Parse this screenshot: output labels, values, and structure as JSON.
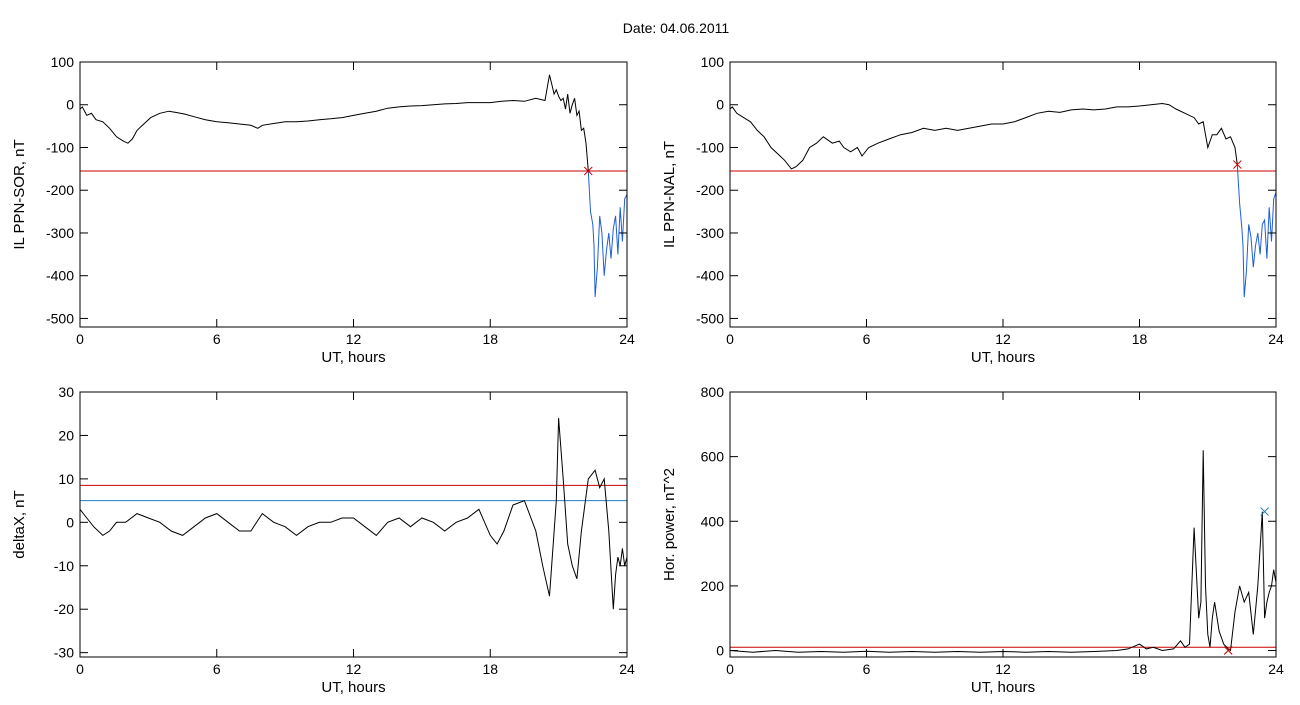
{
  "header": {
    "date_label": "Date:  04.06.2011"
  },
  "colors": {
    "frame": "#000000",
    "trace": "#000000",
    "red": "#cc0000",
    "blue": "#1f5fd6",
    "cyan_blue": "#1f7fc4",
    "green": "#22aa22"
  },
  "chart_data": [
    {
      "id": "il_ppn_sor",
      "type": "line",
      "ylabel": "IL PPN-SOR, nT",
      "xlabel": "UT, hours",
      "xlim": [
        0,
        24
      ],
      "ylim": [
        -520,
        100
      ],
      "xticks": [
        0,
        6,
        12,
        18,
        24
      ],
      "yticks": [
        100,
        0,
        -100,
        -200,
        -300,
        -400,
        -500
      ],
      "hlines": [
        {
          "y": -155,
          "color": "red"
        }
      ],
      "markers": [
        {
          "x": 22.3,
          "y": -155,
          "color": "red",
          "symbol": "x"
        }
      ],
      "series": [
        {
          "color": "black",
          "x": [
            0,
            0.1,
            0.3,
            0.5,
            0.7,
            1.0,
            1.3,
            1.6,
            1.9,
            2.1,
            2.3,
            2.5,
            2.8,
            3.1,
            3.5,
            3.9,
            4.2,
            4.6,
            5.0,
            5.5,
            6.0,
            6.5,
            7.0,
            7.5,
            7.8,
            8.0,
            8.5,
            9.0,
            9.5,
            10.0,
            10.5,
            11.0,
            11.5,
            12.0,
            12.5,
            13.0,
            13.5,
            14.0,
            14.5,
            15.0,
            15.5,
            16.0,
            16.5,
            17.0,
            17.5,
            18.0,
            18.5,
            19.0,
            19.5,
            20.0,
            20.4,
            20.6,
            20.8,
            20.9,
            21.0,
            21.1,
            21.2,
            21.3,
            21.4,
            21.5,
            21.6,
            21.7,
            21.8,
            21.9,
            22.0,
            22.1,
            22.2,
            22.3
          ],
          "y": [
            -10,
            -5,
            -25,
            -20,
            -35,
            -40,
            -55,
            -75,
            -85,
            -90,
            -80,
            -60,
            -45,
            -30,
            -20,
            -15,
            -18,
            -22,
            -28,
            -35,
            -40,
            -42,
            -45,
            -48,
            -55,
            -48,
            -44,
            -40,
            -40,
            -38,
            -35,
            -33,
            -30,
            -25,
            -20,
            -15,
            -8,
            -5,
            -3,
            -2,
            0,
            2,
            3,
            5,
            5,
            5,
            8,
            10,
            8,
            15,
            10,
            70,
            25,
            35,
            20,
            10,
            15,
            -10,
            25,
            -20,
            0,
            15,
            -25,
            -15,
            -60,
            -55,
            -90,
            -155
          ]
        },
        {
          "color": "blue",
          "x": [
            22.3,
            22.4,
            22.5,
            22.55,
            22.6,
            22.7,
            22.8,
            22.9,
            23.0,
            23.1,
            23.2,
            23.3,
            23.4,
            23.5,
            23.6,
            23.7,
            23.8,
            23.9,
            24.0
          ],
          "y": [
            -155,
            -250,
            -280,
            -330,
            -450,
            -380,
            -260,
            -300,
            -400,
            -340,
            -300,
            -360,
            -290,
            -260,
            -350,
            -240,
            -320,
            -220,
            -210
          ]
        }
      ]
    },
    {
      "id": "il_ppn_nal",
      "type": "line",
      "ylabel": "IL PPN-NAL, nT",
      "xlabel": "UT, hours",
      "xlim": [
        0,
        24
      ],
      "ylim": [
        -520,
        100
      ],
      "xticks": [
        0,
        6,
        12,
        18,
        24
      ],
      "yticks": [
        100,
        0,
        -100,
        -200,
        -300,
        -400,
        -500
      ],
      "hlines": [
        {
          "y": -155,
          "color": "red"
        }
      ],
      "markers": [
        {
          "x": 22.3,
          "y": -140,
          "color": "red",
          "symbol": "x"
        }
      ],
      "series": [
        {
          "color": "black",
          "x": [
            0,
            0.1,
            0.3,
            0.6,
            0.9,
            1.2,
            1.5,
            1.8,
            2.1,
            2.4,
            2.7,
            2.9,
            3.2,
            3.5,
            3.8,
            4.1,
            4.5,
            4.8,
            5.0,
            5.3,
            5.6,
            5.8,
            6.1,
            6.5,
            7.0,
            7.5,
            8.0,
            8.5,
            9.0,
            9.5,
            10.0,
            10.5,
            11.0,
            11.5,
            12.0,
            12.5,
            13.0,
            13.5,
            14.0,
            14.5,
            15.0,
            15.5,
            16.0,
            16.5,
            17.0,
            17.5,
            18.0,
            18.5,
            19.0,
            19.3,
            19.6,
            20.0,
            20.4,
            20.6,
            20.8,
            21.0,
            21.2,
            21.4,
            21.6,
            21.8,
            22.0,
            22.2,
            22.3
          ],
          "y": [
            -10,
            -5,
            -20,
            -30,
            -40,
            -60,
            -75,
            -100,
            -115,
            -130,
            -150,
            -145,
            -130,
            -100,
            -90,
            -75,
            -90,
            -85,
            -100,
            -110,
            -100,
            -120,
            -100,
            -90,
            -80,
            -70,
            -65,
            -55,
            -60,
            -55,
            -60,
            -55,
            -50,
            -45,
            -45,
            -40,
            -30,
            -20,
            -15,
            -18,
            -12,
            -10,
            -12,
            -10,
            -5,
            -5,
            -3,
            0,
            3,
            0,
            -10,
            -20,
            -30,
            -45,
            -40,
            -100,
            -70,
            -70,
            -55,
            -80,
            -75,
            -100,
            -140
          ]
        },
        {
          "color": "blue",
          "x": [
            22.3,
            22.4,
            22.5,
            22.55,
            22.6,
            22.7,
            22.8,
            22.9,
            23.0,
            23.1,
            23.2,
            23.3,
            23.4,
            23.5,
            23.6,
            23.7,
            23.8,
            23.9,
            24.0
          ],
          "y": [
            -140,
            -230,
            -290,
            -330,
            -450,
            -390,
            -280,
            -310,
            -380,
            -330,
            -300,
            -350,
            -280,
            -270,
            -360,
            -240,
            -320,
            -220,
            -205
          ]
        }
      ]
    },
    {
      "id": "delta_x",
      "type": "line",
      "ylabel": "deltaX, nT",
      "xlabel": "UT, hours",
      "xlim": [
        0,
        24
      ],
      "ylim": [
        -31,
        30
      ],
      "xticks": [
        0,
        6,
        12,
        18,
        24
      ],
      "yticks": [
        30,
        20,
        10,
        0,
        -10,
        -20,
        -30
      ],
      "hlines": [
        {
          "y": 8.5,
          "color": "red"
        },
        {
          "y": 5,
          "color": "cyan_blue"
        }
      ],
      "markers": [],
      "series": [
        {
          "color": "black",
          "x": [
            0,
            0.3,
            0.6,
            1.0,
            1.3,
            1.6,
            2.0,
            2.5,
            3.0,
            3.5,
            4.0,
            4.5,
            5.0,
            5.5,
            6.0,
            6.5,
            7.0,
            7.5,
            8.0,
            8.5,
            9.0,
            9.5,
            10.0,
            10.5,
            11.0,
            11.5,
            12.0,
            12.5,
            13.0,
            13.5,
            14.0,
            14.5,
            15.0,
            15.5,
            16.0,
            16.5,
            17.0,
            17.5,
            18.0,
            18.3,
            18.6,
            19.0,
            19.5,
            20.0,
            20.3,
            20.6,
            20.9,
            21.0,
            21.2,
            21.4,
            21.6,
            21.8,
            22.0,
            22.3,
            22.6,
            22.8,
            23.0,
            23.2,
            23.4,
            23.5,
            23.6,
            23.7,
            23.8,
            23.9,
            24.0
          ],
          "y": [
            3,
            1,
            -1,
            -3,
            -2,
            0,
            0,
            2,
            1,
            0,
            -2,
            -3,
            -1,
            1,
            2,
            0,
            -2,
            -2,
            2,
            0,
            -1,
            -3,
            -1,
            0,
            0,
            1,
            1,
            -1,
            -3,
            0,
            1,
            -1,
            1,
            0,
            -2,
            0,
            1,
            3,
            -3,
            -5,
            -2,
            4,
            5,
            -2,
            -10,
            -17,
            5,
            24,
            10,
            -5,
            -10,
            -13,
            -2,
            10,
            12,
            8,
            10,
            -2,
            -20,
            -12,
            -8,
            -10,
            -6,
            -10,
            -8
          ]
        }
      ]
    },
    {
      "id": "hor_power",
      "type": "line",
      "ylabel": "Hor. power, nT^2",
      "xlabel": "UT, hours",
      "xlim": [
        0,
        24
      ],
      "ylim": [
        -20,
        800
      ],
      "xticks": [
        0,
        6,
        12,
        18,
        24
      ],
      "yticks": [
        800,
        600,
        400,
        200,
        0
      ],
      "hlines": [
        {
          "y": 10,
          "color": "red"
        }
      ],
      "markers": [
        {
          "x": 23.5,
          "y": 430,
          "color": "cyan_blue",
          "symbol": "x"
        },
        {
          "x": 21.9,
          "y": 0,
          "color": "red",
          "symbol": "x"
        }
      ],
      "series": [
        {
          "color": "black",
          "x": [
            0,
            1,
            2,
            3,
            4,
            5,
            6,
            7,
            8,
            9,
            10,
            11,
            12,
            13,
            14,
            15,
            16,
            17,
            17.5,
            18.0,
            18.3,
            18.6,
            19.0,
            19.5,
            19.8,
            20.0,
            20.2,
            20.4,
            20.6,
            20.7,
            20.8,
            20.9,
            21.0,
            21.1,
            21.2,
            21.3,
            21.5,
            21.7,
            21.9,
            22.0,
            22.2,
            22.4,
            22.6,
            22.8,
            23.0,
            23.2,
            23.4,
            23.5,
            23.6,
            23.7,
            23.8,
            23.9,
            24.0
          ],
          "y": [
            0,
            -5,
            0,
            -5,
            -3,
            -5,
            -2,
            -5,
            -3,
            -5,
            -3,
            -5,
            -3,
            -5,
            -3,
            -5,
            -3,
            0,
            5,
            20,
            5,
            10,
            0,
            5,
            30,
            10,
            20,
            380,
            100,
            150,
            620,
            200,
            50,
            10,
            100,
            150,
            60,
            20,
            5,
            0,
            120,
            200,
            150,
            180,
            50,
            200,
            430,
            100,
            150,
            180,
            200,
            250,
            210
          ]
        }
      ]
    }
  ]
}
